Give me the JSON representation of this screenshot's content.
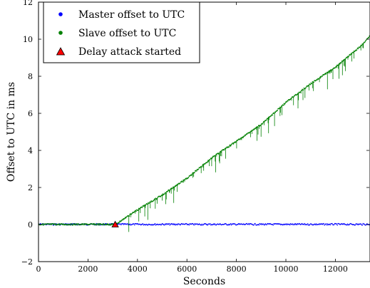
{
  "chart_data": {
    "type": "scatter",
    "title": "",
    "xlabel": "Seconds",
    "ylabel": "Offset to UTC in ms",
    "xlim": [
      0,
      13400
    ],
    "ylim": [
      -2,
      12
    ],
    "x_ticks": [
      0,
      2000,
      4000,
      6000,
      8000,
      10000,
      12000
    ],
    "y_ticks": [
      -2,
      0,
      2,
      4,
      6,
      8,
      10,
      12
    ],
    "x_tick_labels": [
      "0",
      "2000",
      "4000",
      "6000",
      "8000",
      "10000",
      "12000"
    ],
    "y_tick_labels": [
      "−2",
      "0",
      "2",
      "4",
      "6",
      "8",
      "10",
      "12"
    ],
    "grid": false,
    "legend_position": "top-left",
    "series": [
      {
        "name": "Master offset to UTC",
        "marker": "dot",
        "color": "#0000ff",
        "x": [
          0,
          13400
        ],
        "y": [
          0,
          0
        ]
      },
      {
        "name": "Slave offset to UTC",
        "marker": "dot",
        "color": "#008000",
        "x": [
          0,
          3100,
          4000,
          5000,
          6000,
          7000,
          8000,
          9000,
          10000,
          11000,
          12000,
          13000,
          13400
        ],
        "y": [
          0,
          0,
          0.8,
          1.6,
          2.5,
          3.6,
          4.5,
          5.4,
          6.6,
          7.6,
          8.5,
          9.6,
          10.2
        ]
      },
      {
        "name": "Delay attack started",
        "marker": "triangle",
        "color": "#ff0000",
        "x": [
          3100
        ],
        "y": [
          0
        ]
      }
    ]
  }
}
